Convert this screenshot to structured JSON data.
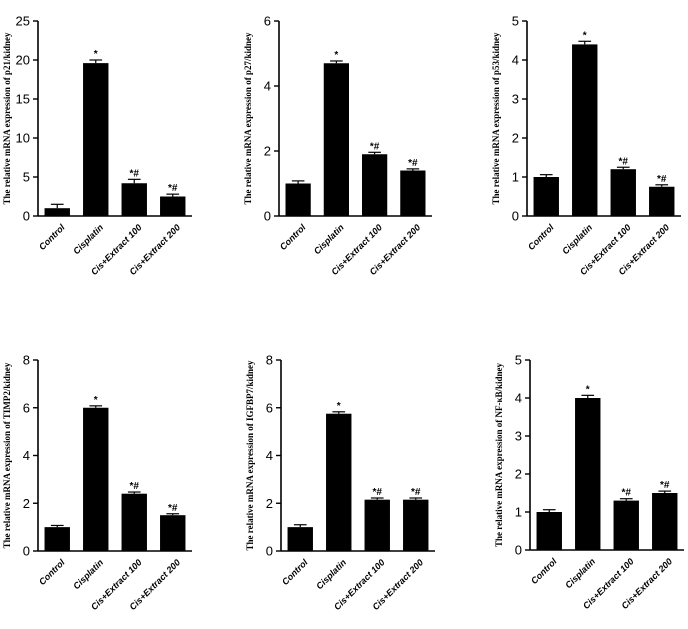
{
  "chart_data": [
    {
      "type": "bar",
      "ylabel": "The relative mRNA expression of p21/kidney",
      "categories": [
        "Control",
        "Cisplatin",
        "Cis+Extract 100",
        "Cis+Extract 200"
      ],
      "values": [
        1.0,
        19.6,
        4.2,
        2.5
      ],
      "errors": [
        0.5,
        0.4,
        0.5,
        0.3
      ],
      "annotations": [
        "",
        "*",
        "*#",
        "*#"
      ],
      "ylim": [
        0,
        25
      ],
      "yticks": [
        "0",
        "5",
        "10",
        "15",
        "20",
        "25"
      ],
      "grid": false
    },
    {
      "type": "bar",
      "ylabel": "The relative mRNA expression of p27/kidney",
      "categories": [
        "Control",
        "Cisplatin",
        "Cis+Extract 100",
        "Cis+Extract 200"
      ],
      "values": [
        1.0,
        4.7,
        1.9,
        1.4
      ],
      "errors": [
        0.08,
        0.07,
        0.06,
        0.05
      ],
      "annotations": [
        "",
        "*",
        "*#",
        "*#"
      ],
      "ylim": [
        0,
        6
      ],
      "yticks": [
        "0",
        "2",
        "4",
        "6"
      ],
      "grid": false
    },
    {
      "type": "bar",
      "ylabel": "The relative mRNA expression of p53/kidney",
      "categories": [
        "Control",
        "Cisplatin",
        "Cis+Extract 100",
        "Cis+Extract 200"
      ],
      "values": [
        1.0,
        4.4,
        1.2,
        0.75
      ],
      "errors": [
        0.06,
        0.08,
        0.05,
        0.05
      ],
      "annotations": [
        "",
        "*",
        "*#",
        "*#"
      ],
      "ylim": [
        0,
        5
      ],
      "yticks": [
        "0",
        "1",
        "2",
        "3",
        "4",
        "5"
      ],
      "grid": false
    },
    {
      "type": "bar",
      "ylabel": "The relative mRNA expression of TIMP2/kidney",
      "categories": [
        "Control",
        "Cisplatin",
        "Cis+Extract 100",
        "Cis+Extract 200"
      ],
      "values": [
        1.0,
        6.0,
        2.4,
        1.5
      ],
      "errors": [
        0.07,
        0.08,
        0.07,
        0.06
      ],
      "annotations": [
        "",
        "*",
        "*#",
        "*#"
      ],
      "ylim": [
        0,
        8
      ],
      "yticks": [
        "0",
        "2",
        "4",
        "6",
        "8"
      ],
      "grid": false
    },
    {
      "type": "bar",
      "ylabel": "The relative mRNA expression of IGFBP7/kidney",
      "categories": [
        "Control",
        "Cisplatin",
        "Cis+Extract 100",
        "Cis+Extract 200"
      ],
      "values": [
        1.0,
        5.75,
        2.15,
        2.15
      ],
      "errors": [
        0.1,
        0.08,
        0.07,
        0.07
      ],
      "annotations": [
        "",
        "*",
        "*#",
        "*#"
      ],
      "ylim": [
        0,
        8
      ],
      "yticks": [
        "0",
        "2",
        "4",
        "6",
        "8"
      ],
      "grid": false
    },
    {
      "type": "bar",
      "ylabel": "The relative mRNA expression of NF-κB/kidney",
      "categories": [
        "Control",
        "Cisplatin",
        "Cis+Extract 100",
        "Cis+Extract 200"
      ],
      "values": [
        1.0,
        4.0,
        1.3,
        1.5
      ],
      "errors": [
        0.06,
        0.07,
        0.05,
        0.05
      ],
      "annotations": [
        "",
        "*",
        "*#",
        "*#"
      ],
      "ylim": [
        0,
        5
      ],
      "yticks": [
        "0",
        "1",
        "2",
        "3",
        "4",
        "5"
      ],
      "grid": false
    }
  ]
}
